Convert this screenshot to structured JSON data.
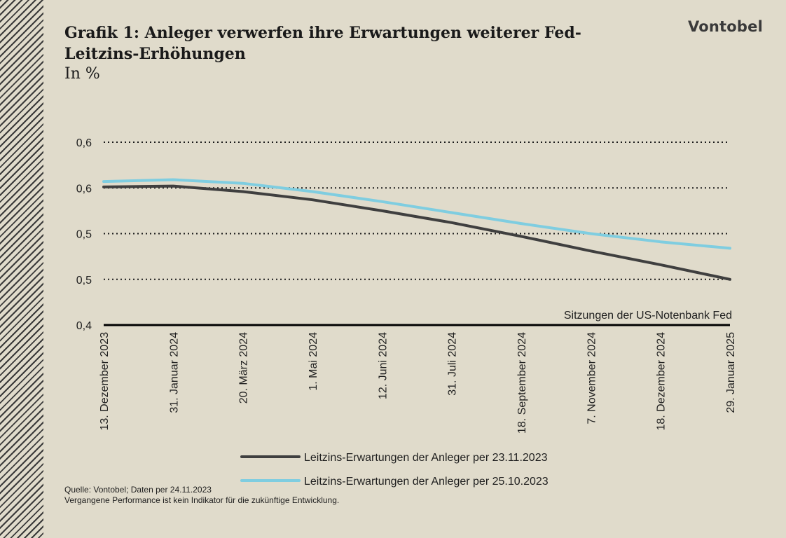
{
  "header": {
    "title": "Grafik 1: Anleger verwerfen ihre Erwartungen weiterer Fed-Leitzins-Erhöhungen",
    "subtitle": "In %",
    "logo": "Vontobel"
  },
  "footer": {
    "source": "Quelle: Vontobel; Daten per 24.11.2023",
    "disclaimer": "Vergangene Performance ist kein Indikator für die zukünftige Entwicklung."
  },
  "colors": {
    "background": "#e0dbcb",
    "series_dark": "#3f3f3f",
    "series_light": "#7fcde0",
    "baseline": "#000000"
  },
  "chart_data": {
    "type": "line",
    "title": "Grafik 1: Anleger verwerfen ihre Erwartungen weiterer Fed-Leitzins-Erhöhungen",
    "ylabel": "In %",
    "xlabel": "",
    "ylim": [
      0.4,
      0.6
    ],
    "yticks": [
      0.4,
      0.45,
      0.5,
      0.55,
      0.6
    ],
    "ytick_labels": [
      "0,4",
      "0,5",
      "0,5",
      "0,6",
      "0,6"
    ],
    "grid": "horizontal dotted",
    "baseline_annotation": "Sitzungen der US-Notenbank Fed",
    "legend_position": "bottom",
    "categories": [
      "13. Dezember 2023",
      "31. Januar 2024",
      "20. März 2024",
      "1. Mai 2024",
      "12. Juni 2024",
      "31. Juli 2024",
      "18. September 2024",
      "7. November 2024",
      "18. Dezember 2024",
      "29. Januar 2025"
    ],
    "series": [
      {
        "name": "Leitzins-Erwartungen der Anleger per 23.11.2023",
        "color": "#3f3f3f",
        "values": [
          0.551,
          0.552,
          0.546,
          0.537,
          0.525,
          0.512,
          0.497,
          0.481,
          0.466,
          0.45
        ]
      },
      {
        "name": "Leitzins-Erwartungen der Anleger per 25.10.2023",
        "color": "#7fcde0",
        "values": [
          0.557,
          0.559,
          0.555,
          0.546,
          0.535,
          0.523,
          0.511,
          0.5,
          0.491,
          0.484
        ]
      }
    ]
  }
}
